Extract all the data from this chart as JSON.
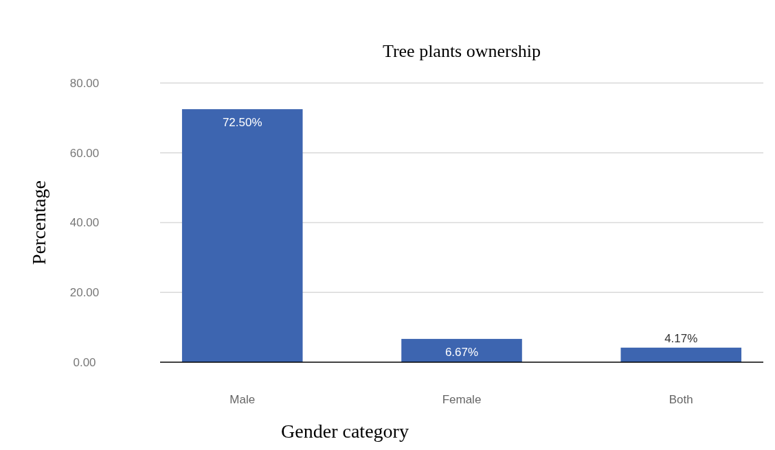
{
  "chart_data": {
    "type": "bar",
    "title": "Tree plants ownership",
    "xlabel": "Gender category",
    "ylabel": "Percentage",
    "categories": [
      "Male",
      "Female",
      "Both"
    ],
    "values": [
      72.5,
      6.67,
      4.17
    ],
    "value_labels": [
      "72.50%",
      "6.67%",
      "4.17%"
    ],
    "color": "#3d65b0",
    "ylim": [
      0,
      80
    ],
    "yticks": [
      {
        "value": 0,
        "label": "0.00"
      },
      {
        "value": 20,
        "label": "20.00"
      },
      {
        "value": 40,
        "label": "40.00"
      },
      {
        "value": 60,
        "label": "60.00"
      },
      {
        "value": 80,
        "label": "80.00"
      }
    ],
    "grid": "y"
  }
}
